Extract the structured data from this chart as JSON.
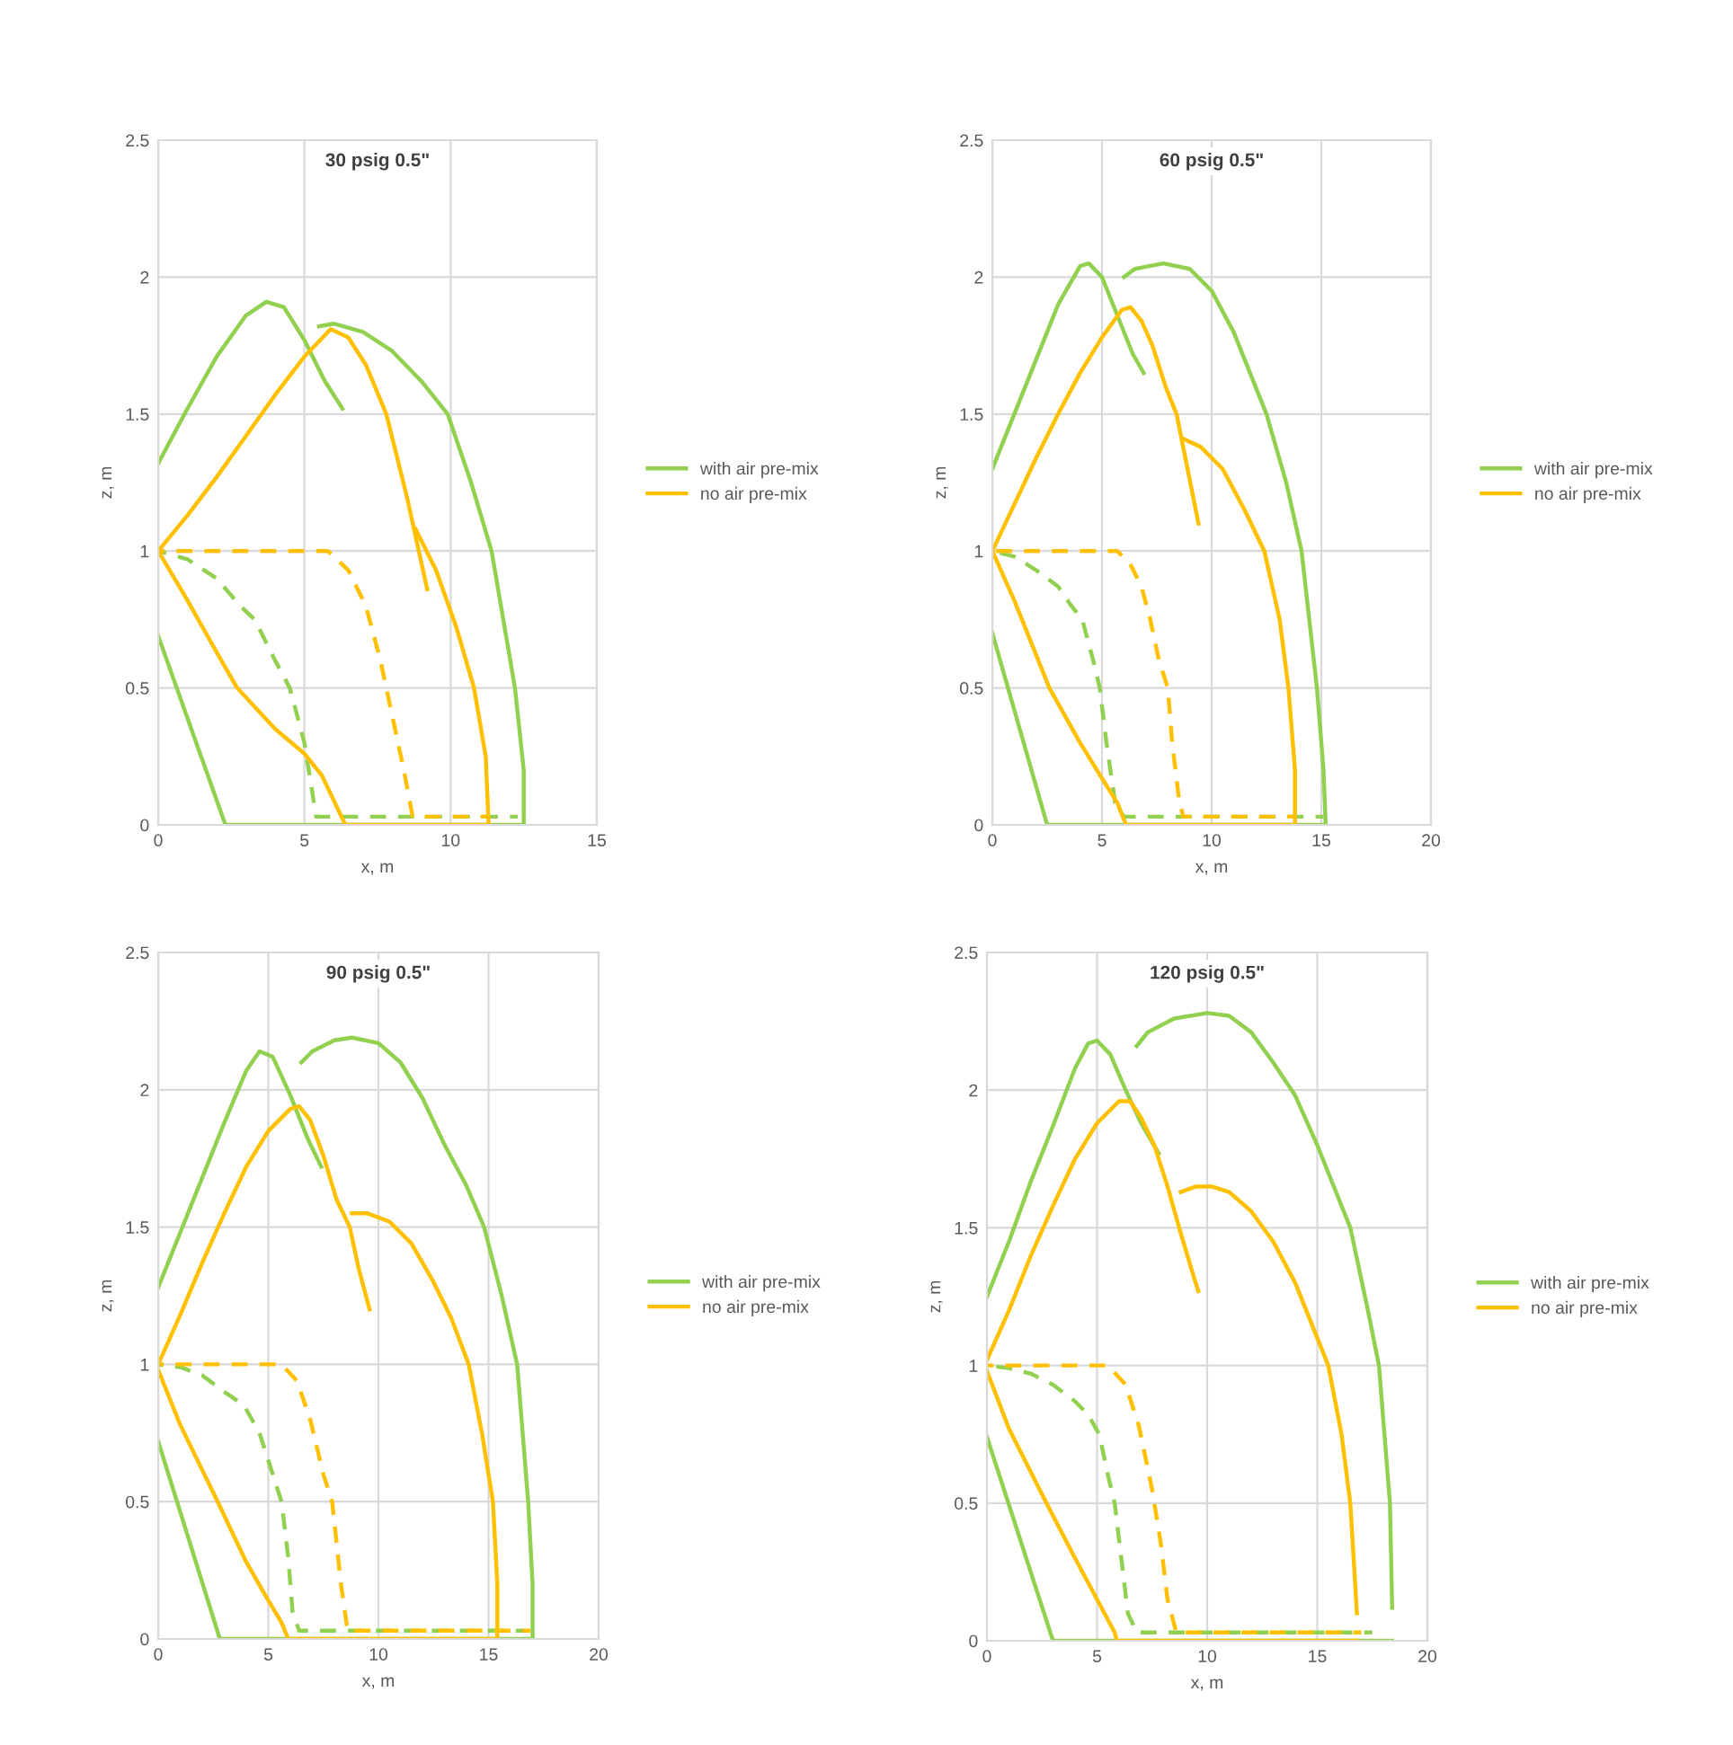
{
  "chart_data": [
    {
      "type": "line",
      "title": "30 psig 0.5\"",
      "xlabel": "x, m",
      "ylabel": "z, m",
      "xlim": [
        0,
        15
      ],
      "xticks": [
        0,
        5,
        10,
        15
      ],
      "ylim": [
        0,
        2.5
      ],
      "yticks": [
        0,
        0.5,
        1,
        1.5,
        2,
        2.5
      ],
      "grid": true,
      "legend": "right",
      "series": [
        {
          "name": "with air pre-mix",
          "color": "#92d050",
          "line_style": "solid",
          "x": [
            0,
            1,
            2,
            3,
            3.7,
            4.3,
            5,
            5.7,
            6.3
          ],
          "values": [
            1.32,
            1.52,
            1.71,
            1.86,
            1.91,
            1.89,
            1.77,
            1.62,
            1.52
          ]
        },
        {
          "color": "#92d050",
          "line_style": "solid",
          "x": [
            5.5,
            6,
            7,
            8,
            9,
            9.9,
            10.7,
            11.4,
            12.2,
            12.5,
            12.5
          ],
          "values": [
            1.82,
            1.83,
            1.8,
            1.73,
            1.62,
            1.5,
            1.25,
            1.0,
            0.5,
            0.2,
            0
          ]
        },
        {
          "color": "#92d050",
          "line_style": "solid",
          "x": [
            0,
            2.3,
            12.5
          ],
          "values": [
            0.69,
            0,
            0
          ]
        },
        {
          "color": "#92d050",
          "line_style": "dashed",
          "x": [
            0,
            1,
            2,
            2.8,
            3.3,
            4,
            4.5,
            5,
            5.4,
            12.3
          ],
          "values": [
            1,
            0.97,
            0.9,
            0.8,
            0.75,
            0.6,
            0.5,
            0.3,
            0.03,
            0.03
          ]
        },
        {
          "name": "no air pre-mix",
          "color": "#ffc000",
          "line_style": "solid",
          "x": [
            0,
            1,
            2,
            3,
            4,
            5,
            5.9,
            6.5,
            7.1,
            7.8,
            8.5,
            9.2
          ],
          "values": [
            1,
            1.13,
            1.27,
            1.42,
            1.57,
            1.71,
            1.81,
            1.78,
            1.68,
            1.5,
            1.2,
            0.86
          ]
        },
        {
          "color": "#ffc000",
          "line_style": "solid",
          "x": [
            8.8,
            9.5,
            10.2,
            10.8,
            11.2,
            11.3
          ],
          "values": [
            1.08,
            0.93,
            0.72,
            0.5,
            0.25,
            0
          ]
        },
        {
          "color": "#ffc000",
          "line_style": "solid",
          "x": [
            0,
            1,
            2,
            2.7,
            4,
            5,
            5.6,
            6.4,
            11.3
          ],
          "values": [
            1,
            0.82,
            0.63,
            0.5,
            0.35,
            0.26,
            0.18,
            0,
            0
          ]
        },
        {
          "color": "#ffc000",
          "line_style": "dashed",
          "x": [
            0,
            5.8,
            6.5,
            7.1,
            7.6,
            8,
            8.4,
            8.7,
            11.3
          ],
          "values": [
            1,
            1,
            0.93,
            0.8,
            0.6,
            0.4,
            0.2,
            0.03,
            0.03
          ]
        }
      ]
    },
    {
      "type": "line",
      "title": "60 psig 0.5\"",
      "xlabel": "x, m",
      "ylabel": "z, m",
      "xlim": [
        0,
        20
      ],
      "xticks": [
        0,
        5,
        10,
        15,
        20
      ],
      "ylim": [
        0,
        2.5
      ],
      "yticks": [
        0,
        0.5,
        1,
        1.5,
        2,
        2.5
      ],
      "grid": true,
      "legend": "right",
      "series": [
        {
          "name": "with air pre-mix",
          "color": "#92d050",
          "line_style": "solid",
          "x": [
            0,
            1,
            2,
            3,
            4,
            4.4,
            5,
            5.6,
            6.4,
            6.9
          ],
          "values": [
            1.3,
            1.5,
            1.7,
            1.9,
            2.04,
            2.05,
            2.0,
            1.88,
            1.72,
            1.65
          ]
        },
        {
          "color": "#92d050",
          "line_style": "solid",
          "x": [
            6,
            6.5,
            7.8,
            9,
            10,
            11,
            12,
            12.5,
            13.4,
            14.1,
            14.8,
            15.1,
            15.2
          ],
          "values": [
            2.0,
            2.03,
            2.05,
            2.03,
            1.95,
            1.8,
            1.6,
            1.5,
            1.25,
            1.0,
            0.5,
            0.2,
            0
          ]
        },
        {
          "color": "#92d050",
          "line_style": "solid",
          "x": [
            0,
            2.5,
            15.2
          ],
          "values": [
            0.7,
            0,
            0
          ]
        },
        {
          "color": "#92d050",
          "line_style": "dashed",
          "x": [
            0,
            1,
            2,
            3,
            3.6,
            4.1,
            4.6,
            4.9,
            5.2,
            5.6,
            6.0,
            15.1
          ],
          "values": [
            1,
            0.98,
            0.93,
            0.87,
            0.8,
            0.75,
            0.6,
            0.5,
            0.3,
            0.08,
            0.03,
            0.03
          ]
        },
        {
          "name": "no air pre-mix",
          "color": "#ffc000",
          "line_style": "solid",
          "x": [
            0,
            1,
            2,
            3,
            4,
            5,
            5.9,
            6.3,
            6.8,
            7.3,
            7.9,
            8.4,
            8.9,
            9.4
          ],
          "values": [
            1,
            1.17,
            1.34,
            1.5,
            1.65,
            1.78,
            1.88,
            1.89,
            1.84,
            1.75,
            1.6,
            1.5,
            1.3,
            1.1
          ]
        },
        {
          "color": "#ffc000",
          "line_style": "solid",
          "x": [
            8.7,
            9.5,
            10.5,
            11.5,
            12.4,
            13.1,
            13.5,
            13.8,
            13.8
          ],
          "values": [
            1.41,
            1.38,
            1.3,
            1.15,
            1.0,
            0.75,
            0.5,
            0.2,
            0
          ]
        },
        {
          "color": "#ffc000",
          "line_style": "solid",
          "x": [
            0,
            1,
            2.6,
            4,
            5,
            5.7,
            6.1,
            13.8
          ],
          "values": [
            1,
            0.82,
            0.5,
            0.3,
            0.17,
            0.08,
            0,
            0
          ]
        },
        {
          "color": "#ffc000",
          "line_style": "dashed",
          "x": [
            0,
            5.7,
            6.3,
            6.8,
            7.2,
            7.6,
            8.0,
            8.2,
            8.5,
            8.7,
            13.8
          ],
          "values": [
            1,
            1,
            0.95,
            0.87,
            0.75,
            0.6,
            0.5,
            0.3,
            0.1,
            0.03,
            0.03
          ]
        }
      ]
    },
    {
      "type": "line",
      "title": "90 psig 0.5\"",
      "xlabel": "x, m",
      "ylabel": "z, m",
      "xlim": [
        0,
        20
      ],
      "xticks": [
        0,
        5,
        10,
        15,
        20
      ],
      "ylim": [
        0,
        2.5
      ],
      "yticks": [
        0,
        0.5,
        1,
        1.5,
        2,
        2.5
      ],
      "grid": true,
      "legend": "right",
      "series": [
        {
          "name": "with air pre-mix",
          "color": "#92d050",
          "line_style": "solid",
          "x": [
            0,
            1,
            2,
            3,
            4,
            4.6,
            5.2,
            6,
            6.8,
            7.4
          ],
          "values": [
            1.28,
            1.48,
            1.68,
            1.88,
            2.07,
            2.14,
            2.12,
            1.98,
            1.82,
            1.72
          ]
        },
        {
          "color": "#92d050",
          "line_style": "solid",
          "x": [
            6.5,
            7,
            8,
            8.8,
            10,
            11,
            12,
            13,
            14,
            14.8,
            15.6,
            16.3,
            16.8,
            17.0,
            17.0
          ],
          "values": [
            2.1,
            2.14,
            2.18,
            2.19,
            2.17,
            2.1,
            1.97,
            1.8,
            1.65,
            1.5,
            1.25,
            1.0,
            0.5,
            0.2,
            0
          ]
        },
        {
          "color": "#92d050",
          "line_style": "solid",
          "x": [
            0,
            2.8,
            17.0
          ],
          "values": [
            0.72,
            0,
            0
          ]
        },
        {
          "color": "#92d050",
          "line_style": "dashed",
          "x": [
            0,
            1,
            2,
            3,
            3.9,
            4.6,
            5.2,
            5.6,
            5.9,
            6.1,
            6.4,
            16.6
          ],
          "values": [
            1,
            0.99,
            0.96,
            0.9,
            0.85,
            0.75,
            0.6,
            0.5,
            0.3,
            0.1,
            0.03,
            0.03
          ]
        },
        {
          "name": "no air pre-mix",
          "color": "#ffc000",
          "line_style": "solid",
          "x": [
            0,
            1,
            2,
            3,
            4,
            5,
            6,
            6.4,
            6.9,
            7.5,
            8.1,
            8.7,
            9.1,
            9.6
          ],
          "values": [
            1,
            1.18,
            1.37,
            1.55,
            1.72,
            1.85,
            1.93,
            1.94,
            1.89,
            1.76,
            1.6,
            1.5,
            1.35,
            1.2
          ]
        },
        {
          "color": "#ffc000",
          "line_style": "solid",
          "x": [
            8.8,
            9.5,
            10.5,
            11.5,
            12.5,
            13.3,
            14.1,
            14.7,
            15.2,
            15.4,
            15.4
          ],
          "values": [
            1.55,
            1.55,
            1.52,
            1.44,
            1.3,
            1.17,
            1.0,
            0.75,
            0.5,
            0.2,
            0
          ]
        },
        {
          "color": "#ffc000",
          "line_style": "solid",
          "x": [
            0,
            1,
            2.7,
            4,
            5,
            5.6,
            5.9,
            15.4
          ],
          "values": [
            0.98,
            0.78,
            0.5,
            0.28,
            0.14,
            0.06,
            0,
            0
          ]
        },
        {
          "color": "#ffc000",
          "line_style": "dashed",
          "x": [
            0,
            5.6,
            6.3,
            6.9,
            7.5,
            7.9,
            8.3,
            8.6,
            16.9
          ],
          "values": [
            1,
            1,
            0.94,
            0.8,
            0.6,
            0.5,
            0.2,
            0.03,
            0.03
          ]
        }
      ]
    },
    {
      "type": "line",
      "title": "120 psig 0.5\"",
      "xlabel": "x, m",
      "ylabel": "z, m",
      "xlim": [
        0,
        20
      ],
      "xticks": [
        0,
        5,
        10,
        15,
        20
      ],
      "ylim": [
        0,
        2.5
      ],
      "yticks": [
        0,
        0.5,
        1,
        1.5,
        2,
        2.5
      ],
      "grid": true,
      "legend": "right",
      "series": [
        {
          "name": "with air pre-mix",
          "color": "#92d050",
          "line_style": "solid",
          "x": [
            0,
            1,
            2,
            3,
            4,
            4.6,
            5,
            5.6,
            6.3,
            7,
            7.8
          ],
          "values": [
            1.25,
            1.45,
            1.67,
            1.87,
            2.08,
            2.17,
            2.18,
            2.13,
            2.0,
            1.88,
            1.77
          ]
        },
        {
          "color": "#92d050",
          "line_style": "solid",
          "x": [
            6.8,
            7.3,
            8.5,
            10,
            11,
            12,
            13,
            14,
            15,
            16,
            16.5,
            17.3,
            17.8,
            18.3,
            18.4
          ],
          "values": [
            2.16,
            2.21,
            2.26,
            2.28,
            2.27,
            2.21,
            2.1,
            1.98,
            1.8,
            1.6,
            1.5,
            1.2,
            1.0,
            0.5,
            0.12
          ]
        },
        {
          "color": "#92d050",
          "line_style": "solid",
          "x": [
            0,
            3.0,
            18.4
          ],
          "values": [
            0.74,
            0,
            0
          ]
        },
        {
          "color": "#92d050",
          "line_style": "dashed",
          "x": [
            0,
            1,
            2,
            3,
            4,
            4.6,
            5.1,
            5.5,
            5.8,
            6.1,
            6.4,
            6.8,
            17.5
          ],
          "values": [
            1,
            0.99,
            0.97,
            0.93,
            0.87,
            0.82,
            0.75,
            0.6,
            0.5,
            0.3,
            0.1,
            0.03,
            0.03
          ]
        },
        {
          "name": "no air pre-mix",
          "color": "#ffc000",
          "line_style": "solid",
          "x": [
            0,
            1,
            2,
            3,
            4,
            5,
            6,
            6.5,
            7,
            7.6,
            8.2,
            8.8,
            9.4,
            9.6
          ],
          "values": [
            1.02,
            1.2,
            1.4,
            1.58,
            1.75,
            1.88,
            1.96,
            1.96,
            1.9,
            1.8,
            1.65,
            1.48,
            1.32,
            1.27
          ]
        },
        {
          "color": "#ffc000",
          "line_style": "solid",
          "x": [
            8.8,
            9.5,
            10.2,
            11,
            12,
            13,
            14,
            14.5,
            15.5,
            16.1,
            16.5,
            16.8
          ],
          "values": [
            1.63,
            1.65,
            1.65,
            1.63,
            1.56,
            1.45,
            1.3,
            1.2,
            1.0,
            0.75,
            0.5,
            0.1
          ]
        },
        {
          "color": "#ffc000",
          "line_style": "solid",
          "x": [
            0,
            1,
            2.7,
            4,
            5,
            5.8,
            5.9,
            16.8
          ],
          "values": [
            0.98,
            0.77,
            0.5,
            0.3,
            0.15,
            0.03,
            0,
            0
          ]
        },
        {
          "color": "#ffc000",
          "line_style": "dashed",
          "x": [
            0,
            5.5,
            6.3,
            6.9,
            7.5,
            7.9,
            8.2,
            8.6,
            17.0
          ],
          "values": [
            1,
            1,
            0.93,
            0.78,
            0.55,
            0.35,
            0.15,
            0.03,
            0.03
          ]
        }
      ]
    }
  ]
}
